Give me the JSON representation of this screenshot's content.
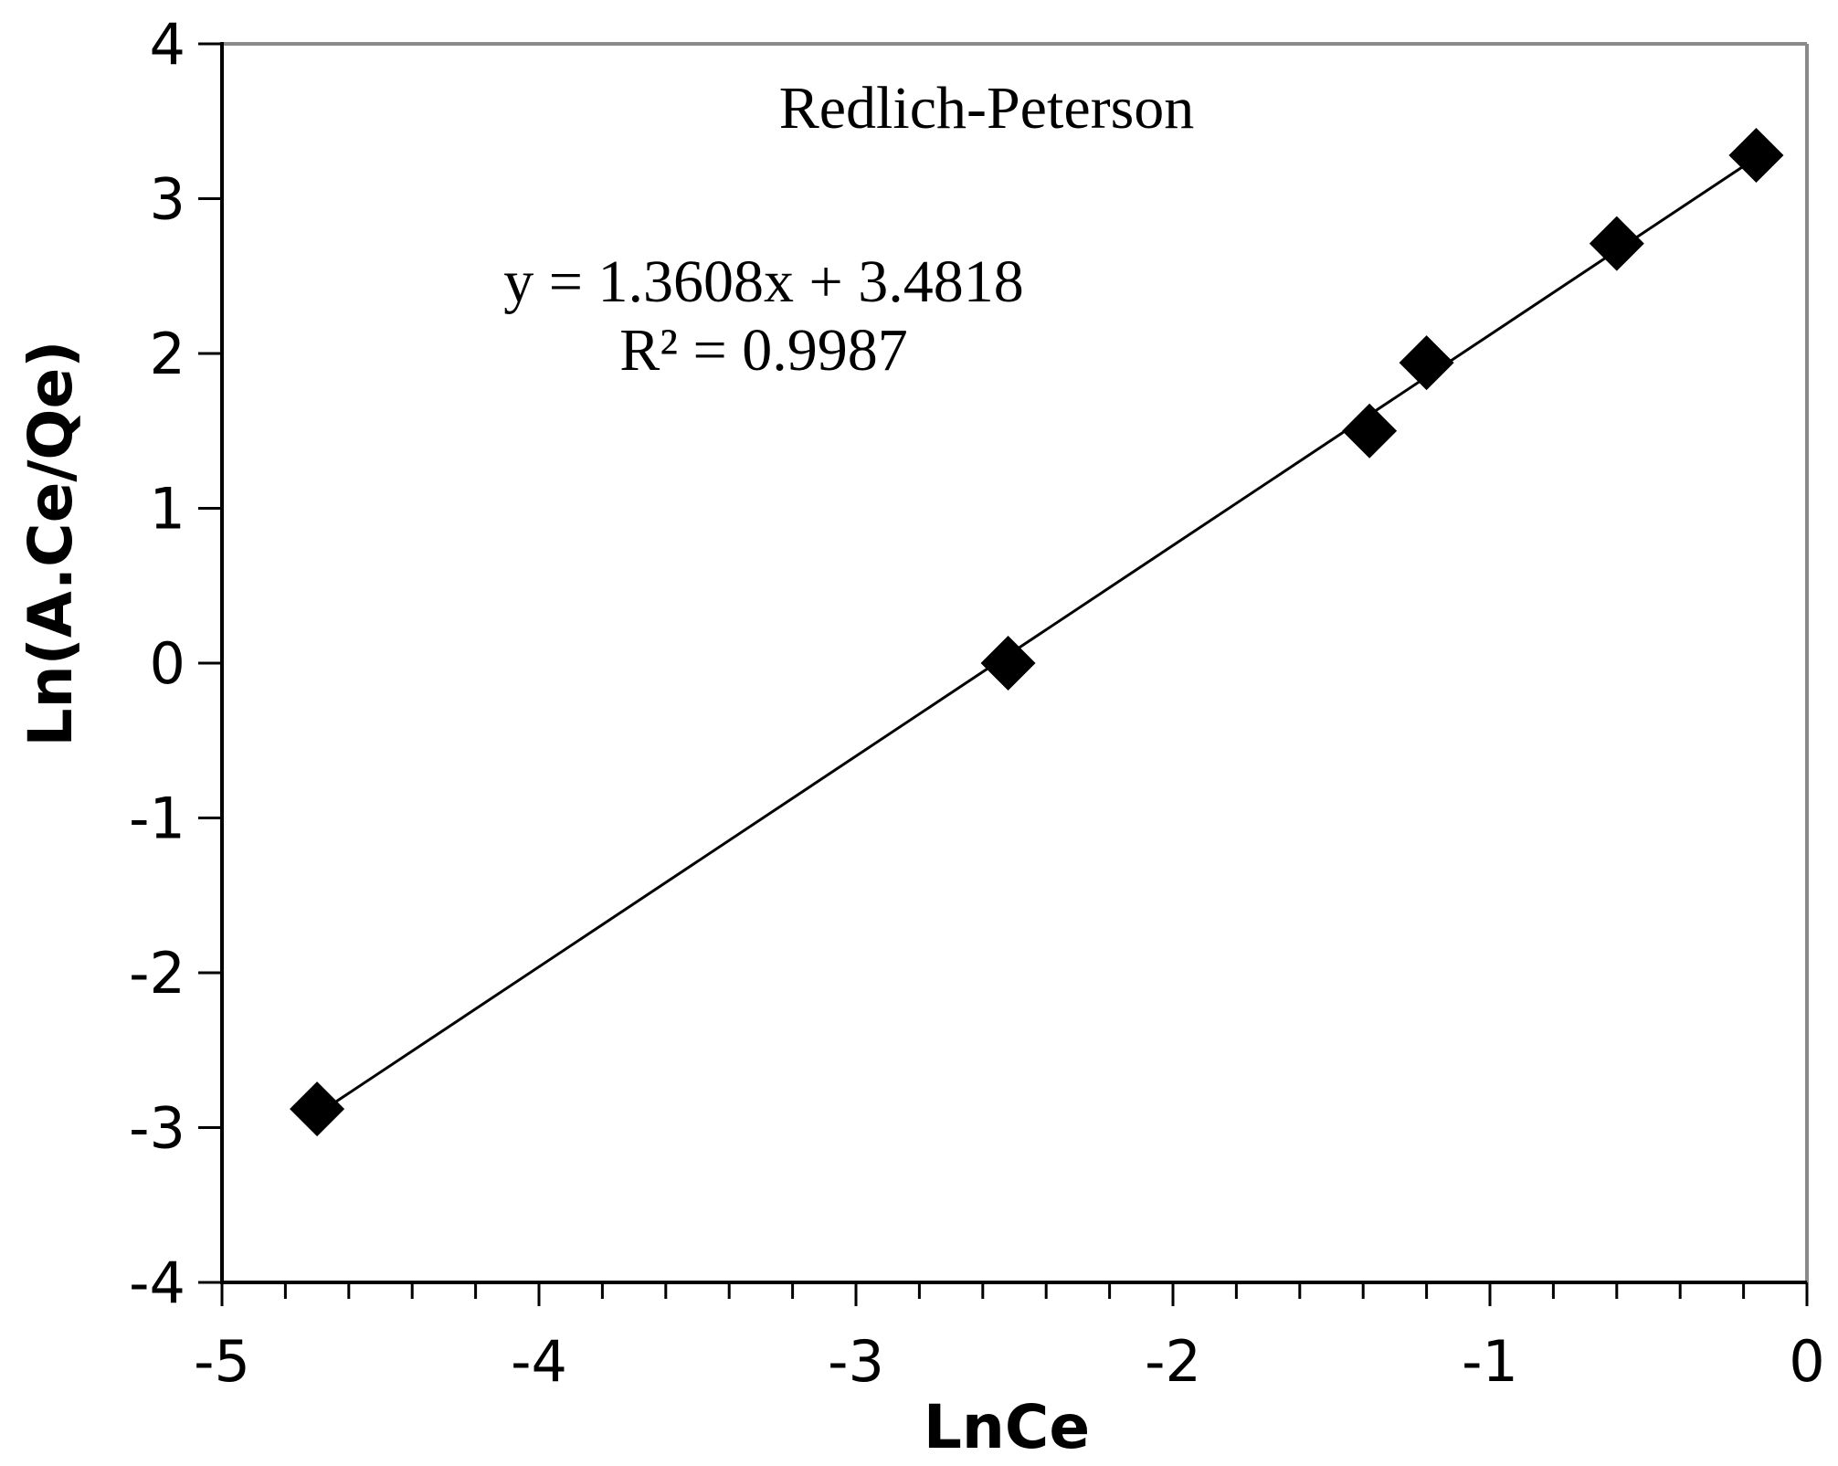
{
  "chart_data": {
    "type": "scatter",
    "title": "Redlich-Peterson",
    "xlabel": "LnCe",
    "ylabel": "Ln(A.Ce/Qe)",
    "xlim": [
      -5,
      0
    ],
    "ylim": [
      -4,
      4
    ],
    "x_ticks": [
      "-5",
      "-4",
      "-3",
      "-2",
      "-1",
      "0"
    ],
    "y_ticks": [
      "4",
      "3",
      "2",
      "1",
      "0",
      "-1",
      "-2",
      "-3",
      "-4"
    ],
    "marker": "diamond",
    "marker_color": "#000000",
    "grid": false,
    "series": [
      {
        "x": [
          -4.7,
          -2.52,
          -1.38,
          -1.2,
          -0.6,
          -0.16
        ],
        "y": [
          -2.88,
          0.0,
          1.5,
          1.94,
          2.71,
          3.28
        ]
      }
    ],
    "trendline": {
      "slope": 1.3608,
      "intercept": 3.4818,
      "x_range": [
        -4.7,
        -0.16
      ],
      "equation": "y = 1.3608x + 3.4818",
      "r_squared": "R² = 0.9987"
    }
  }
}
